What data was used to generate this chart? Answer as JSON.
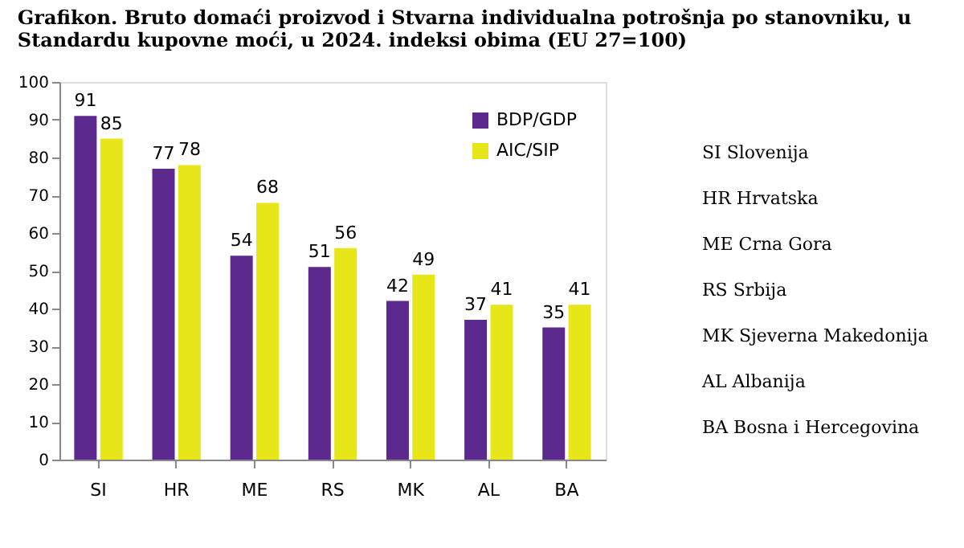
{
  "chart_data": {
    "type": "bar",
    "title": "Grafikon. Bruto domaći proizvod i Stvarna individualna potrošnja po stanovniku, u Standardu kupovne moći, u 2024. indeksi obima (EU 27=100)",
    "categories": [
      "SI",
      "HR",
      "ME",
      "RS",
      "MK",
      "AL",
      "BA"
    ],
    "series": [
      {
        "name": "BDP/GDP",
        "color": "#5c2a8e",
        "values": [
          91,
          77,
          54,
          51,
          42,
          37,
          35
        ]
      },
      {
        "name": "AIC/SIP",
        "color": "#e6e619",
        "values": [
          85,
          78,
          68,
          56,
          49,
          41,
          41
        ]
      }
    ],
    "ylim": [
      0,
      100
    ],
    "yticks": [
      0,
      10,
      20,
      30,
      40,
      50,
      60,
      70,
      80,
      90,
      100
    ],
    "grid": false,
    "legend": "top right",
    "data_labels": true,
    "annotations": [
      "SI Slovenija",
      "HR Hrvatska",
      "ME Crna Gora",
      "RS Srbija",
      "MK Sjeverna Makedonija",
      "AL Albanija",
      "BA Bosna i Hercegovina"
    ]
  }
}
